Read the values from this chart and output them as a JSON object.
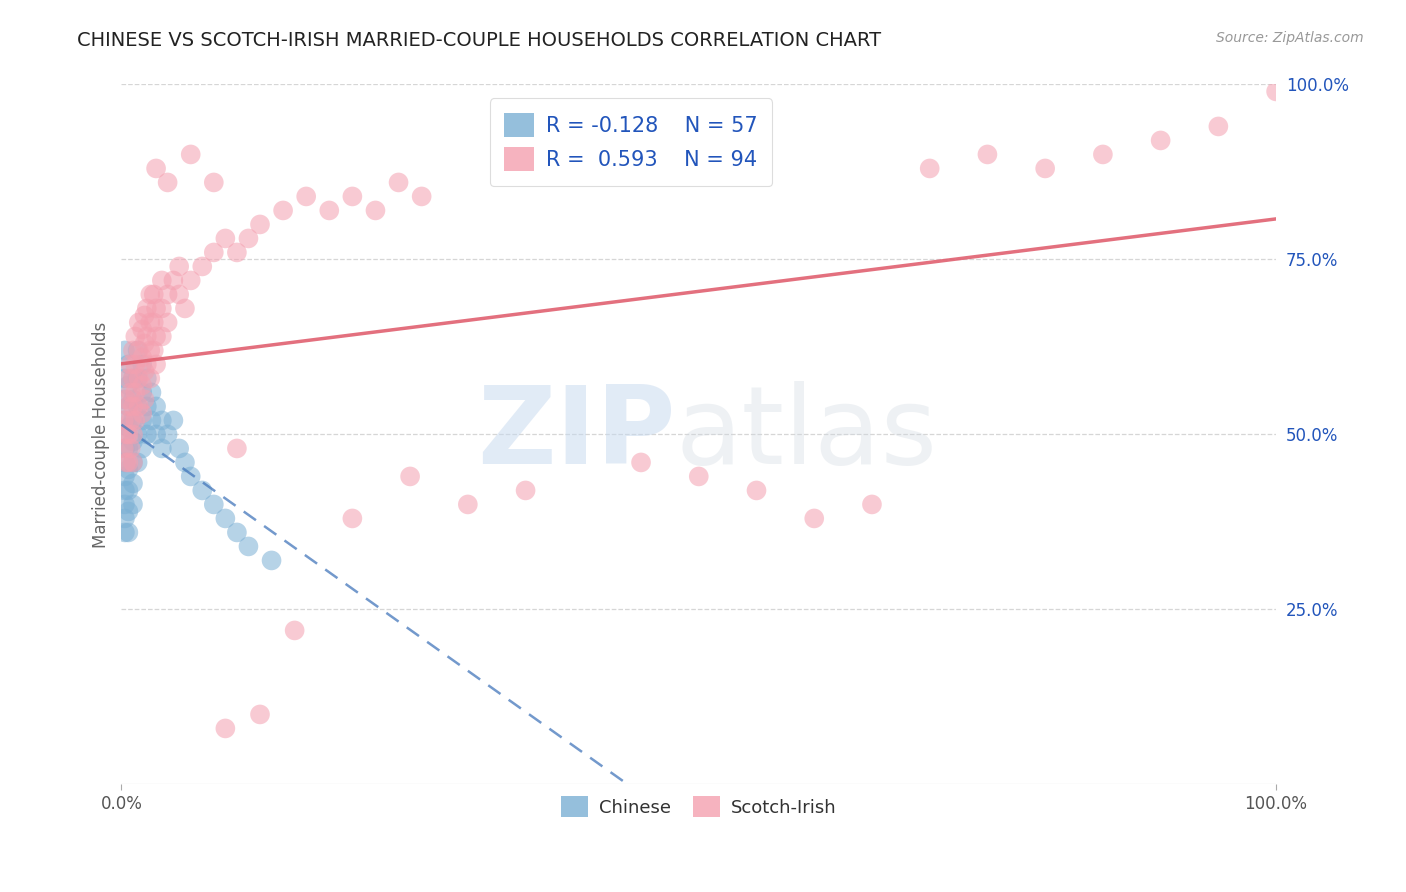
{
  "title": "CHINESE VS SCOTCH-IRISH MARRIED-COUPLE HOUSEHOLDS CORRELATION CHART",
  "source_text": "Source: ZipAtlas.com",
  "ylabel": "Married-couple Households",
  "xlim": [
    0.0,
    1.0
  ],
  "ylim": [
    0.0,
    1.0
  ],
  "ytick_positions_right": [
    0.25,
    0.5,
    0.75,
    1.0
  ],
  "ytick_labels_right": [
    "25.0%",
    "50.0%",
    "75.0%",
    "100.0%"
  ],
  "chinese_color": "#7bafd4",
  "chinese_line_color": "#4477bb",
  "scotch_color": "#f4a0b0",
  "scotch_line_color": "#e06070",
  "chinese_R": -0.128,
  "chinese_N": 57,
  "scotch_R": 0.593,
  "scotch_N": 94,
  "background_color": "#ffffff",
  "grid_color": "#cccccc",
  "title_color": "#222222",
  "title_fontsize": 14,
  "legend_color": "#2255bb",
  "chinese_points": [
    [
      0.003,
      0.62
    ],
    [
      0.003,
      0.58
    ],
    [
      0.003,
      0.55
    ],
    [
      0.003,
      0.52
    ],
    [
      0.003,
      0.5
    ],
    [
      0.003,
      0.48
    ],
    [
      0.003,
      0.46
    ],
    [
      0.003,
      0.44
    ],
    [
      0.003,
      0.42
    ],
    [
      0.003,
      0.4
    ],
    [
      0.003,
      0.38
    ],
    [
      0.003,
      0.36
    ],
    [
      0.006,
      0.6
    ],
    [
      0.006,
      0.57
    ],
    [
      0.006,
      0.54
    ],
    [
      0.006,
      0.51
    ],
    [
      0.006,
      0.48
    ],
    [
      0.006,
      0.45
    ],
    [
      0.006,
      0.42
    ],
    [
      0.006,
      0.39
    ],
    [
      0.006,
      0.36
    ],
    [
      0.01,
      0.58
    ],
    [
      0.01,
      0.55
    ],
    [
      0.01,
      0.52
    ],
    [
      0.01,
      0.49
    ],
    [
      0.01,
      0.46
    ],
    [
      0.01,
      0.43
    ],
    [
      0.01,
      0.4
    ],
    [
      0.014,
      0.62
    ],
    [
      0.014,
      0.58
    ],
    [
      0.014,
      0.54
    ],
    [
      0.014,
      0.5
    ],
    [
      0.014,
      0.46
    ],
    [
      0.018,
      0.6
    ],
    [
      0.018,
      0.56
    ],
    [
      0.018,
      0.52
    ],
    [
      0.018,
      0.48
    ],
    [
      0.022,
      0.58
    ],
    [
      0.022,
      0.54
    ],
    [
      0.022,
      0.5
    ],
    [
      0.026,
      0.56
    ],
    [
      0.026,
      0.52
    ],
    [
      0.03,
      0.54
    ],
    [
      0.03,
      0.5
    ],
    [
      0.035,
      0.52
    ],
    [
      0.035,
      0.48
    ],
    [
      0.04,
      0.5
    ],
    [
      0.045,
      0.52
    ],
    [
      0.05,
      0.48
    ],
    [
      0.055,
      0.46
    ],
    [
      0.06,
      0.44
    ],
    [
      0.07,
      0.42
    ],
    [
      0.08,
      0.4
    ],
    [
      0.09,
      0.38
    ],
    [
      0.1,
      0.36
    ],
    [
      0.11,
      0.34
    ],
    [
      0.13,
      0.32
    ]
  ],
  "scotch_points": [
    [
      0.002,
      0.52
    ],
    [
      0.002,
      0.48
    ],
    [
      0.004,
      0.55
    ],
    [
      0.004,
      0.5
    ],
    [
      0.004,
      0.46
    ],
    [
      0.006,
      0.58
    ],
    [
      0.006,
      0.54
    ],
    [
      0.006,
      0.5
    ],
    [
      0.006,
      0.46
    ],
    [
      0.008,
      0.6
    ],
    [
      0.008,
      0.56
    ],
    [
      0.008,
      0.52
    ],
    [
      0.008,
      0.48
    ],
    [
      0.01,
      0.62
    ],
    [
      0.01,
      0.58
    ],
    [
      0.01,
      0.54
    ],
    [
      0.01,
      0.5
    ],
    [
      0.01,
      0.46
    ],
    [
      0.012,
      0.64
    ],
    [
      0.012,
      0.6
    ],
    [
      0.012,
      0.56
    ],
    [
      0.012,
      0.52
    ],
    [
      0.015,
      0.66
    ],
    [
      0.015,
      0.62
    ],
    [
      0.015,
      0.58
    ],
    [
      0.015,
      0.54
    ],
    [
      0.018,
      0.65
    ],
    [
      0.018,
      0.61
    ],
    [
      0.018,
      0.57
    ],
    [
      0.018,
      0.53
    ],
    [
      0.02,
      0.67
    ],
    [
      0.02,
      0.63
    ],
    [
      0.02,
      0.59
    ],
    [
      0.02,
      0.55
    ],
    [
      0.022,
      0.68
    ],
    [
      0.022,
      0.64
    ],
    [
      0.022,
      0.6
    ],
    [
      0.025,
      0.7
    ],
    [
      0.025,
      0.66
    ],
    [
      0.025,
      0.62
    ],
    [
      0.025,
      0.58
    ],
    [
      0.028,
      0.7
    ],
    [
      0.028,
      0.66
    ],
    [
      0.028,
      0.62
    ],
    [
      0.03,
      0.68
    ],
    [
      0.03,
      0.64
    ],
    [
      0.03,
      0.6
    ],
    [
      0.035,
      0.72
    ],
    [
      0.035,
      0.68
    ],
    [
      0.035,
      0.64
    ],
    [
      0.04,
      0.7
    ],
    [
      0.04,
      0.66
    ],
    [
      0.045,
      0.72
    ],
    [
      0.05,
      0.74
    ],
    [
      0.05,
      0.7
    ],
    [
      0.055,
      0.68
    ],
    [
      0.06,
      0.72
    ],
    [
      0.07,
      0.74
    ],
    [
      0.08,
      0.76
    ],
    [
      0.09,
      0.78
    ],
    [
      0.1,
      0.76
    ],
    [
      0.11,
      0.78
    ],
    [
      0.12,
      0.8
    ],
    [
      0.14,
      0.82
    ],
    [
      0.16,
      0.84
    ],
    [
      0.18,
      0.82
    ],
    [
      0.2,
      0.84
    ],
    [
      0.22,
      0.82
    ],
    [
      0.24,
      0.86
    ],
    [
      0.26,
      0.84
    ],
    [
      0.1,
      0.48
    ],
    [
      0.15,
      0.22
    ],
    [
      0.2,
      0.38
    ],
    [
      0.25,
      0.44
    ],
    [
      0.3,
      0.4
    ],
    [
      0.35,
      0.42
    ],
    [
      0.45,
      0.46
    ],
    [
      0.5,
      0.44
    ],
    [
      0.55,
      0.42
    ],
    [
      0.6,
      0.38
    ],
    [
      0.65,
      0.4
    ],
    [
      0.7,
      0.88
    ],
    [
      0.75,
      0.9
    ],
    [
      0.8,
      0.88
    ],
    [
      0.85,
      0.9
    ],
    [
      0.9,
      0.92
    ],
    [
      0.95,
      0.94
    ],
    [
      1.0,
      0.99
    ],
    [
      0.08,
      0.86
    ],
    [
      0.06,
      0.9
    ],
    [
      0.03,
      0.88
    ],
    [
      0.04,
      0.86
    ],
    [
      0.09,
      0.08
    ],
    [
      0.12,
      0.1
    ]
  ]
}
